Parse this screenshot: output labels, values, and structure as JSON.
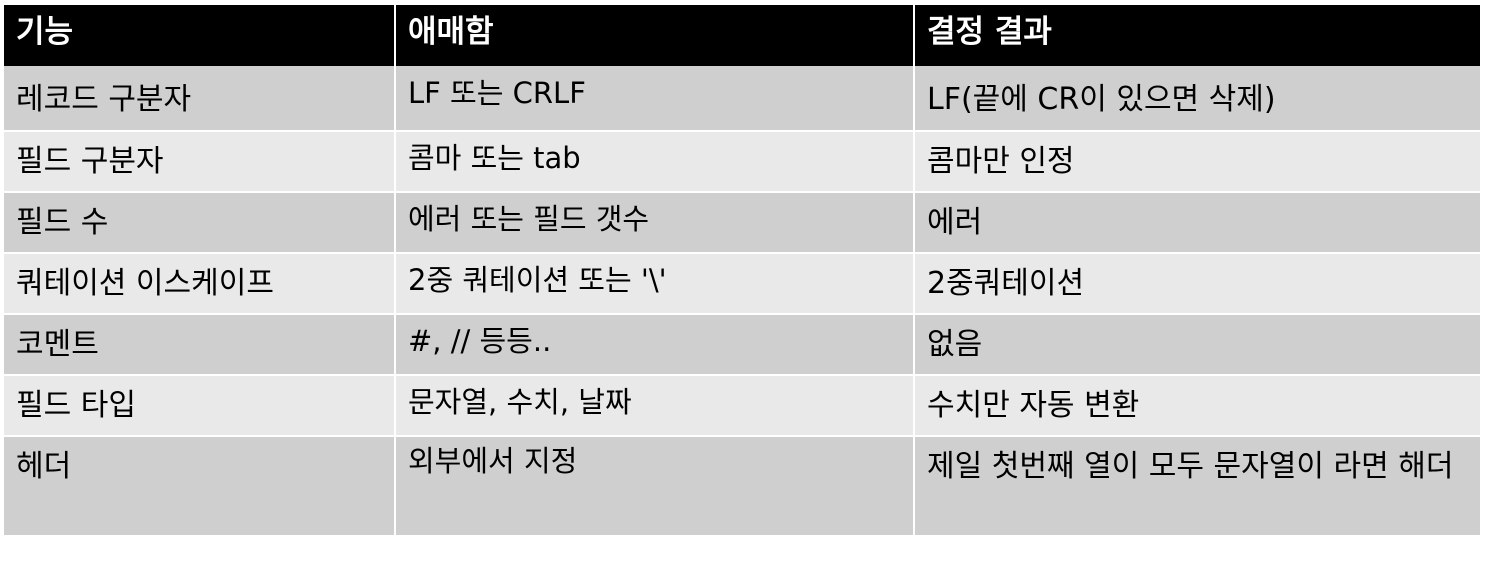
{
  "colors": {
    "header_bg": "#000000",
    "header_text": "#ffffff",
    "row_odd_bg": "#cfcfcf",
    "row_even_bg": "#e9e9e9"
  },
  "table": {
    "headers": [
      "기능",
      "애매함",
      "결정 결과"
    ],
    "rows": [
      [
        "레코드 구분자",
        "LF 또는 CRLF",
        "LF(끝에 CR이 있으면 삭제)"
      ],
      [
        "필드 구분자",
        "콤마 또는 tab",
        "콤마만 인정"
      ],
      [
        "필드 수",
        "에러 또는 필드 갯수",
        "에러"
      ],
      [
        "쿼테이션 이스케이프",
        "2중 쿼테이션 또는 '\\'",
        "2중쿼테이션"
      ],
      [
        "코멘트",
        "#, //  등등..",
        "없음"
      ],
      [
        "필드 타입",
        "문자열, 수치, 날짜",
        "수치만 자동 변환"
      ],
      [
        "헤더",
        "외부에서 지정",
        "제일 첫번째 열이 모두 문자열이 라면 해더"
      ]
    ]
  }
}
